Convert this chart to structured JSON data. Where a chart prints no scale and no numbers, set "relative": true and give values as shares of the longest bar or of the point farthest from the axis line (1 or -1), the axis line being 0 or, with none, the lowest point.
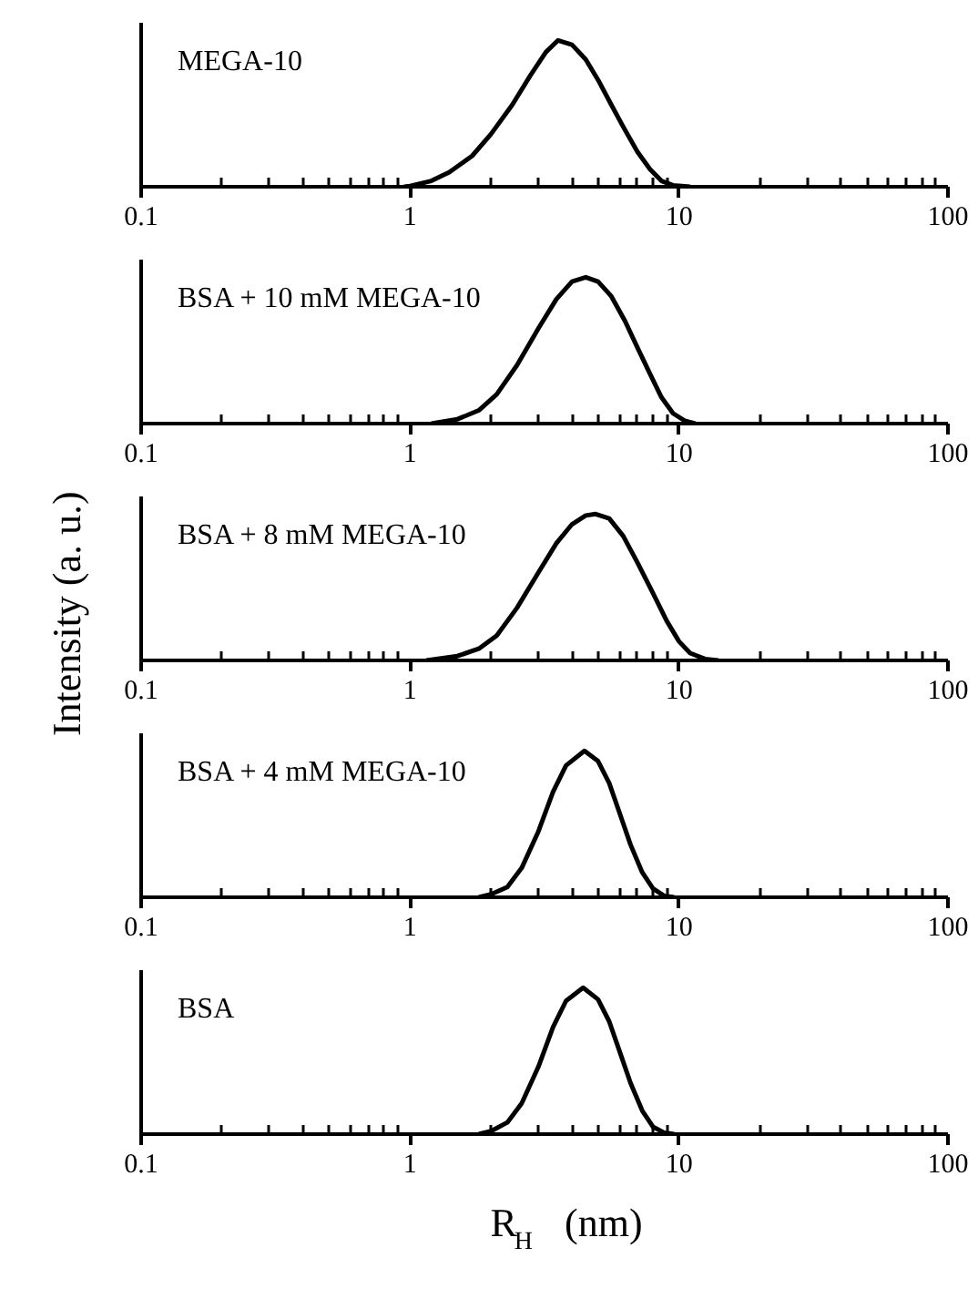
{
  "chart_data": [
    {
      "type": "line",
      "title": "MEGA-10",
      "relative": true,
      "log": "x",
      "xlim": [
        0.1,
        100
      ],
      "xticks": [
        0.1,
        1,
        10,
        100
      ],
      "color": "#000000",
      "x": [
        0.95,
        1.0,
        1.2,
        1.4,
        1.7,
        2.0,
        2.4,
        2.8,
        3.2,
        3.55,
        4.0,
        4.5,
        5.0,
        5.6,
        6.2,
        7.0,
        7.8,
        8.6,
        9.5,
        11
      ],
      "values": [
        0,
        0.005,
        0.04,
        0.1,
        0.21,
        0.36,
        0.56,
        0.76,
        0.92,
        1,
        0.97,
        0.87,
        0.73,
        0.56,
        0.41,
        0.24,
        0.12,
        0.04,
        0.01,
        0
      ]
    },
    {
      "type": "line",
      "title": "BSA + 10 mM MEGA-10",
      "relative": true,
      "log": "x",
      "xlim": [
        0.1,
        100
      ],
      "xticks": [
        0.1,
        1,
        10,
        100
      ],
      "color": "#000000",
      "x": [
        1.2,
        1.5,
        1.8,
        2.1,
        2.5,
        3.0,
        3.5,
        4.0,
        4.5,
        5.0,
        5.6,
        6.3,
        7.0,
        7.8,
        8.6,
        9.5,
        10.5,
        11.5
      ],
      "values": [
        0,
        0.03,
        0.09,
        0.2,
        0.4,
        0.65,
        0.85,
        0.97,
        1,
        0.97,
        0.87,
        0.7,
        0.52,
        0.34,
        0.18,
        0.07,
        0.02,
        0
      ]
    },
    {
      "type": "line",
      "title": "BSA + 8 mM MEGA-10",
      "relative": true,
      "log": "x",
      "xlim": [
        0.1,
        100
      ],
      "xticks": [
        0.1,
        1,
        10,
        100
      ],
      "color": "#000000",
      "ylabel": "Intensity  (a. u.)",
      "x": [
        1.15,
        1.5,
        1.8,
        2.1,
        2.5,
        3.0,
        3.5,
        4.0,
        4.5,
        4.9,
        5.5,
        6.2,
        7.0,
        8.0,
        9.0,
        10,
        11,
        12.5,
        14
      ],
      "values": [
        0,
        0.03,
        0.08,
        0.17,
        0.36,
        0.6,
        0.8,
        0.93,
        0.99,
        1,
        0.97,
        0.85,
        0.67,
        0.46,
        0.27,
        0.13,
        0.05,
        0.01,
        0
      ]
    },
    {
      "type": "line",
      "title": "BSA + 4 mM MEGA-10",
      "relative": true,
      "log": "x",
      "xlim": [
        0.1,
        100
      ],
      "xticks": [
        0.1,
        1,
        10,
        100
      ],
      "color": "#000000",
      "x": [
        1.8,
        2.0,
        2.3,
        2.6,
        3.0,
        3.4,
        3.8,
        4.45,
        5.0,
        5.5,
        6.0,
        6.6,
        7.3,
        8.0,
        8.8,
        9.6
      ],
      "values": [
        0,
        0.02,
        0.07,
        0.2,
        0.45,
        0.72,
        0.9,
        1,
        0.93,
        0.78,
        0.58,
        0.36,
        0.17,
        0.06,
        0.01,
        0
      ]
    },
    {
      "type": "line",
      "title": "BSA",
      "relative": true,
      "log": "x",
      "xlim": [
        0.1,
        100
      ],
      "xticks": [
        0.1,
        1,
        10,
        100
      ],
      "color": "#000000",
      "xlabel": "R$_{H}$  (nm)",
      "x": [
        1.8,
        2.0,
        2.3,
        2.6,
        3.0,
        3.4,
        3.8,
        4.4,
        5.0,
        5.5,
        6.0,
        6.6,
        7.3,
        8.0,
        8.8,
        9.6
      ],
      "values": [
        0,
        0.02,
        0.08,
        0.21,
        0.46,
        0.73,
        0.91,
        1,
        0.92,
        0.77,
        0.57,
        0.35,
        0.16,
        0.05,
        0.01,
        0
      ]
    }
  ]
}
